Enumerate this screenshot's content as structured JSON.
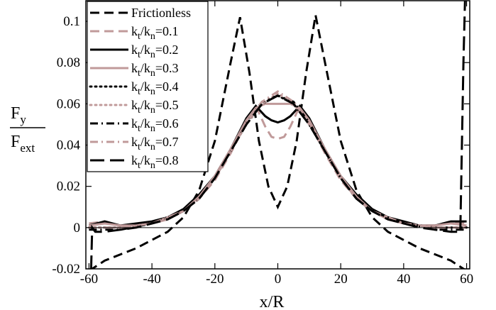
{
  "chart_data": {
    "type": "line",
    "xlabel": "x/R",
    "ylabel": {
      "numerator": "F",
      "numerator_sub": "y",
      "denominator": "F",
      "denominator_sub": "ext"
    },
    "xlim": [
      -61,
      61
    ],
    "ylim": [
      -0.02,
      0.11
    ],
    "x_ticks": [
      -60,
      -40,
      -20,
      0,
      20,
      40,
      60
    ],
    "x_tick_labels": [
      "-60",
      "-40",
      "-20",
      "0",
      "20",
      "40",
      "60"
    ],
    "y_ticks": [
      -0.02,
      0,
      0.02,
      0.04,
      0.06,
      0.08,
      0.1
    ],
    "y_tick_labels": [
      "-0.02",
      "0",
      "0.02",
      "0.04",
      "0.06",
      "0.08",
      "0.1"
    ],
    "grid": false,
    "legend_position": "top-left",
    "colors": {
      "black": "#000000",
      "rose": "#c09a9a"
    },
    "series": [
      {
        "name": "Frictionless",
        "label_main": "Frictionless",
        "color": "#000000",
        "dash": "dashed",
        "x": [
          -60,
          -55,
          -50,
          -45,
          -40,
          -35,
          -30,
          -25,
          -20,
          -15,
          -12,
          -9,
          -6,
          -3,
          0,
          3,
          6,
          9,
          12,
          15,
          20,
          25,
          30,
          35,
          40,
          45,
          50,
          55,
          60
        ],
        "y": [
          -0.021,
          -0.016,
          -0.013,
          -0.01,
          -0.006,
          -0.002,
          0.005,
          0.018,
          0.042,
          0.08,
          0.102,
          0.075,
          0.042,
          0.02,
          0.01,
          0.02,
          0.042,
          0.075,
          0.103,
          0.08,
          0.042,
          0.018,
          0.005,
          -0.002,
          -0.006,
          -0.01,
          -0.013,
          -0.016,
          -0.021
        ]
      },
      {
        "name": "k_t/k_n=0.1",
        "label_main": "k",
        "label_sub1": "t",
        "label_mid": "/k",
        "label_sub2": "n",
        "label_value": "=0.1",
        "color": "#c09a9a",
        "dash": "dashed",
        "x": [
          -60,
          -55,
          -50,
          -45,
          -40,
          -35,
          -30,
          -25,
          -20,
          -15,
          -10,
          -7,
          -4,
          -2,
          0,
          2,
          4,
          7,
          10,
          15,
          20,
          25,
          30,
          35,
          40,
          45,
          50,
          55,
          60
        ],
        "y": [
          0.002,
          0.003,
          0.001,
          0.001,
          0.002,
          0.004,
          0.008,
          0.014,
          0.023,
          0.036,
          0.051,
          0.059,
          0.049,
          0.044,
          0.043,
          0.044,
          0.049,
          0.059,
          0.051,
          0.036,
          0.023,
          0.014,
          0.008,
          0.004,
          0.002,
          0.001,
          0.001,
          0.003,
          0.002
        ]
      },
      {
        "name": "k_t/k_n=0.2",
        "label_main": "k",
        "label_sub1": "t",
        "label_mid": "/k",
        "label_sub2": "n",
        "label_value": "=0.2",
        "color": "#000000",
        "dash": "solid",
        "x": [
          -60,
          -55,
          -50,
          -45,
          -40,
          -35,
          -30,
          -25,
          -20,
          -15,
          -10,
          -7,
          -4,
          -2,
          0,
          2,
          4,
          7,
          10,
          15,
          20,
          25,
          30,
          35,
          40,
          45,
          50,
          55,
          60
        ],
        "y": [
          0.001,
          0.003,
          0.001,
          0.002,
          0.003,
          0.005,
          0.009,
          0.016,
          0.025,
          0.038,
          0.053,
          0.059,
          0.054,
          0.052,
          0.051,
          0.052,
          0.054,
          0.059,
          0.053,
          0.038,
          0.025,
          0.016,
          0.009,
          0.005,
          0.003,
          0.001,
          0.001,
          0.003,
          0.003
        ]
      },
      {
        "name": "k_t/k_n=0.3",
        "label_main": "k",
        "label_sub1": "t",
        "label_mid": "/k",
        "label_sub2": "n",
        "label_value": "=0.3",
        "color": "#c09a9a",
        "dash": "solid",
        "x": [
          -60,
          -55,
          -50,
          -45,
          -40,
          -35,
          -30,
          -25,
          -20,
          -15,
          -10,
          -7,
          -4,
          -2,
          0,
          2,
          4,
          7,
          10,
          15,
          20,
          25,
          30,
          35,
          40,
          45,
          50,
          55,
          60
        ],
        "y": [
          0.001,
          0.002,
          0.001,
          0.001,
          0.002,
          0.004,
          0.008,
          0.015,
          0.025,
          0.038,
          0.052,
          0.058,
          0.06,
          0.06,
          0.06,
          0.06,
          0.06,
          0.058,
          0.052,
          0.038,
          0.025,
          0.015,
          0.008,
          0.004,
          0.002,
          0.001,
          0.001,
          0.002,
          0.001
        ]
      },
      {
        "name": "k_t/k_n=0.4",
        "label_main": "k",
        "label_sub1": "t",
        "label_mid": "/k",
        "label_sub2": "n",
        "label_value": "=0.4",
        "color": "#000000",
        "dash": "dotted",
        "x": [
          -60,
          -50,
          -40,
          -30,
          -25,
          -20,
          -15,
          -10,
          -5,
          0,
          5,
          10,
          15,
          20,
          25,
          30,
          40,
          50,
          60
        ],
        "y": [
          0.0,
          0.0,
          0.002,
          0.008,
          0.014,
          0.024,
          0.037,
          0.05,
          0.06,
          0.064,
          0.06,
          0.05,
          0.037,
          0.024,
          0.014,
          0.008,
          0.002,
          0.0,
          0.0
        ]
      },
      {
        "name": "k_t/k_n=0.5",
        "label_main": "k",
        "label_sub1": "t",
        "label_mid": "/k",
        "label_sub2": "n",
        "label_value": "=0.5",
        "color": "#c09a9a",
        "dash": "dotted",
        "x": [
          -60,
          -50,
          -40,
          -30,
          -25,
          -20,
          -15,
          -10,
          -5,
          0,
          5,
          10,
          15,
          20,
          25,
          30,
          40,
          50,
          60
        ],
        "y": [
          0.0,
          0.0,
          0.002,
          0.008,
          0.014,
          0.024,
          0.037,
          0.05,
          0.06,
          0.065,
          0.06,
          0.05,
          0.037,
          0.024,
          0.014,
          0.008,
          0.002,
          0.0,
          0.0
        ]
      },
      {
        "name": "k_t/k_n=0.6",
        "label_main": "k",
        "label_sub1": "t",
        "label_mid": "/k",
        "label_sub2": "n",
        "label_value": "=0.6",
        "color": "#000000",
        "dash": "dashdot",
        "x": [
          -60,
          -50,
          -40,
          -30,
          -25,
          -20,
          -15,
          -10,
          -5,
          0,
          5,
          10,
          15,
          20,
          25,
          30,
          40,
          50,
          60
        ],
        "y": [
          -0.001,
          -0.001,
          0.002,
          0.008,
          0.014,
          0.024,
          0.037,
          0.051,
          0.061,
          0.064,
          0.061,
          0.051,
          0.037,
          0.024,
          0.014,
          0.008,
          0.002,
          -0.001,
          -0.001
        ]
      },
      {
        "name": "k_t/k_n=0.7",
        "label_main": "k",
        "label_sub1": "t",
        "label_mid": "/k",
        "label_sub2": "n",
        "label_value": "=0.7",
        "color": "#c09a9a",
        "dash": "dashdot",
        "x": [
          -60,
          -50,
          -40,
          -30,
          -25,
          -20,
          -15,
          -10,
          -5,
          0,
          5,
          10,
          15,
          20,
          25,
          30,
          40,
          50,
          60
        ],
        "y": [
          0.0,
          0.0,
          0.002,
          0.008,
          0.014,
          0.024,
          0.037,
          0.051,
          0.061,
          0.066,
          0.061,
          0.051,
          0.037,
          0.024,
          0.014,
          0.008,
          0.002,
          0.0,
          0.0
        ]
      },
      {
        "name": "k_t/k_n=0.8",
        "label_main": "k",
        "label_sub1": "t",
        "label_mid": "/k",
        "label_sub2": "n",
        "label_value": "=0.8",
        "color": "#000000",
        "dash": "longdash",
        "x": [
          -59.5,
          -59,
          -58,
          -55,
          -50,
          -45,
          -40,
          -35,
          -30,
          -25,
          -20,
          -15,
          -10,
          -5,
          0,
          5,
          10,
          15,
          20,
          25,
          30,
          35,
          40,
          45,
          50,
          55,
          58,
          59,
          59.5
        ],
        "y": [
          -0.03,
          0.0,
          -0.002,
          -0.002,
          -0.001,
          0.0,
          0.002,
          0.004,
          0.008,
          0.014,
          0.024,
          0.037,
          0.05,
          0.06,
          0.064,
          0.06,
          0.05,
          0.037,
          0.024,
          0.014,
          0.008,
          0.004,
          0.002,
          0.0,
          -0.001,
          -0.002,
          -0.002,
          0.08,
          0.11
        ]
      }
    ]
  }
}
